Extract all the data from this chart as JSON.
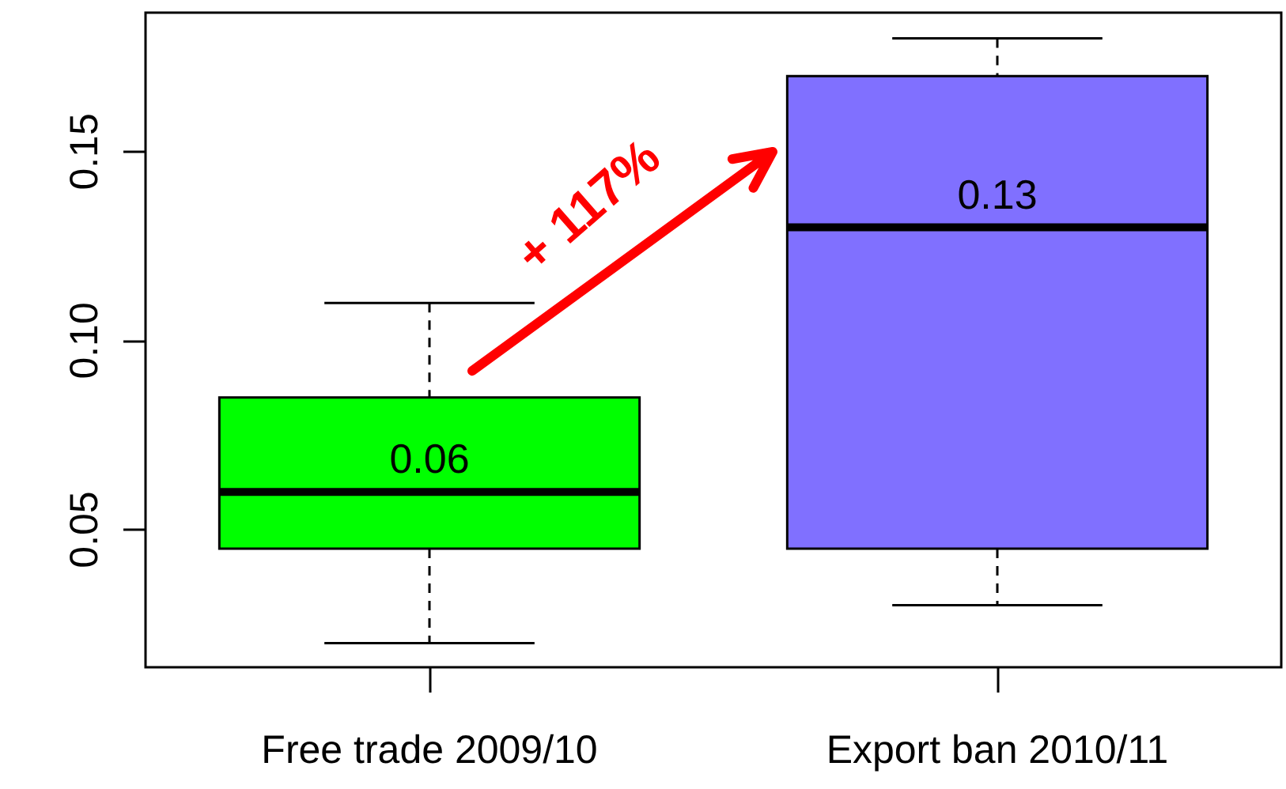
{
  "chart_data": {
    "type": "box",
    "categories": [
      "Free trade 2009/10",
      "Export ban 2010/11"
    ],
    "boxes": [
      {
        "low": 0.02,
        "q1": 0.045,
        "median": 0.06,
        "q3": 0.085,
        "high": 0.11
      },
      {
        "low": 0.03,
        "q1": 0.045,
        "median": 0.13,
        "q3": 0.17,
        "high": 0.18
      }
    ],
    "colors": [
      "#00ff00",
      "#8070ff"
    ],
    "ylim": [
      0.0136,
      0.1868
    ],
    "yticks": [
      {
        "value": 0.05,
        "label": "0.05"
      },
      {
        "value": 0.1,
        "label": "0.10"
      },
      {
        "value": 0.15,
        "label": "0.15"
      }
    ],
    "grid": false,
    "annotations": [
      "+ 117%",
      {
        "text": "0.06",
        "x": "Free trade 2009/10",
        "y": 0.06
      },
      {
        "text": "0.13",
        "x": "Export ban 2010/11",
        "y": 0.13
      }
    ]
  }
}
